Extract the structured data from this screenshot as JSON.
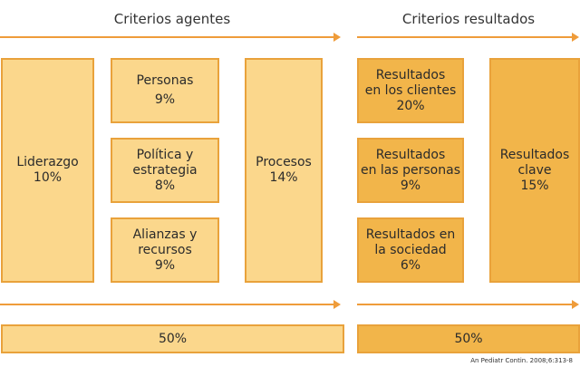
{
  "headers": {
    "agentes": "Criterios agentes",
    "resultados": "Criterios resultados"
  },
  "boxes": {
    "liderazgo": {
      "label": "Liderazgo",
      "pct": "10%"
    },
    "personas": {
      "label": "Personas",
      "pct": "9%"
    },
    "politica": {
      "line1": "Política y",
      "line2": "estrategia",
      "pct": "8%"
    },
    "alianzas": {
      "line1": "Alianzas y",
      "line2": "recursos",
      "pct": "9%"
    },
    "procesos": {
      "label": "Procesos",
      "pct": "14%"
    },
    "res_clientes": {
      "line1": "Resultados",
      "line2": "en los clientes",
      "pct": "20%"
    },
    "res_personas": {
      "line1": "Resultados",
      "line2": "en las personas",
      "pct": "9%"
    },
    "res_sociedad": {
      "line1": "Resultados en",
      "line2": "la sociedad",
      "pct": "6%"
    },
    "res_clave": {
      "line1": "Resultados",
      "line2": "clave",
      "pct": "15%"
    }
  },
  "totals": {
    "agentes": "50%",
    "resultados": "50%"
  },
  "footnote": "An Pediatr Contin. 2008;6:313-8",
  "colors": {
    "light": "#fbd78c",
    "dark": "#f2b54a",
    "border": "#e9a23b",
    "arrow": "#ef9c3a"
  }
}
